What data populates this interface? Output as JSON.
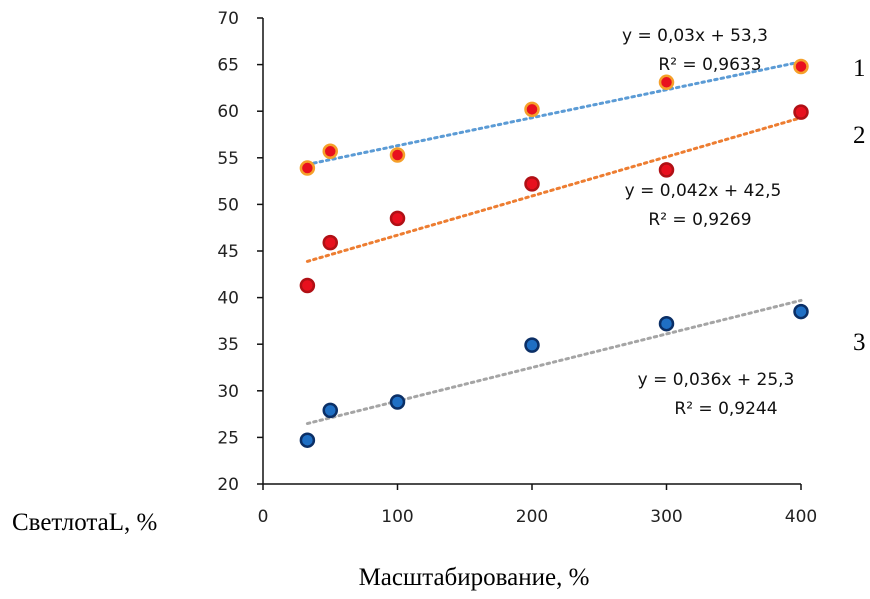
{
  "chart_data": {
    "type": "scatter",
    "xlabel": "Масштабирование, %",
    "ylabel": "СветлотаL, %",
    "xlim": [
      0,
      400
    ],
    "ylim": [
      20,
      70
    ],
    "x_ticks": [
      0,
      100,
      200,
      300,
      400
    ],
    "y_ticks": [
      20,
      25,
      30,
      35,
      40,
      45,
      50,
      55,
      60,
      65,
      70
    ],
    "grid": false,
    "legend": "none",
    "x": [
      33,
      50,
      100,
      200,
      300,
      400
    ],
    "series": [
      {
        "name": "1",
        "values": [
          53.9,
          55.7,
          55.3,
          60.2,
          63.1,
          64.8
        ],
        "marker_fill": "#e8101e",
        "marker_edge": "#f5a02a",
        "trend_color": "#5b9bd5",
        "trend": {
          "slope": 0.03,
          "intercept": 53.3
        },
        "equation": "y = 0,03x + 53,3",
        "r2": "R² = 0,9633"
      },
      {
        "name": "2",
        "values": [
          41.3,
          45.9,
          48.5,
          52.2,
          53.7,
          59.9
        ],
        "marker_fill": "#e8101e",
        "marker_edge": "#b01015",
        "trend_color": "#ed7d31",
        "trend": {
          "slope": 0.042,
          "intercept": 42.5
        },
        "equation": "y = 0,042x + 42,5",
        "r2": "R² = 0,9269"
      },
      {
        "name": "3",
        "values": [
          24.7,
          27.9,
          28.8,
          34.9,
          37.2,
          38.5
        ],
        "marker_fill": "#1f6fc4",
        "marker_edge": "#0b2f66",
        "trend_color": "#a5a5a5",
        "trend": {
          "slope": 0.036,
          "intercept": 25.3
        },
        "equation": "y = 0,036x + 25,3",
        "r2": "R² = 0,9244"
      }
    ]
  }
}
